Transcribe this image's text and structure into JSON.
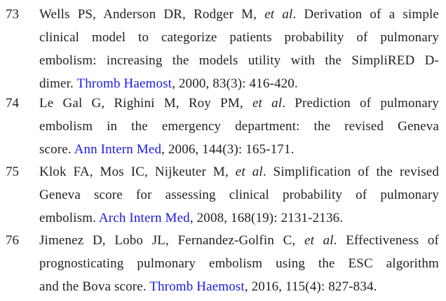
{
  "references": [
    {
      "number": "73",
      "authors": "Wells PS, Anderson DR, Rodger M,",
      "etal": "et al",
      "title_lines": [
        ". Derivation of a simple",
        "clinical model to categorize patients probability of pulmonary",
        "embolism: increasing the models utility with the SimpliRED D-",
        "dimer. "
      ],
      "journal": "Thromb Haemost",
      "citation": ", 2000, 83(3): 416-420."
    },
    {
      "number": "74",
      "authors": "Le Gal G, Righini M, Roy PM,",
      "etal": "et al",
      "title_lines": [
        ". Prediction of pulmonary",
        "embolism in the emergency department: the revised Geneva",
        "score. "
      ],
      "journal": "Ann Intern Med",
      "citation": ", 2006, 144(3): 165-171."
    },
    {
      "number": "75",
      "authors": "Klok FA, Mos IC, Nijkeuter M,",
      "etal": "et al",
      "title_lines": [
        ". Simplification of the revised",
        "Geneva score for assessing clinical probability of pulmonary",
        "embolism. "
      ],
      "journal": "Arch Intern Med",
      "citation": ", 2008, 168(19): 2131-2136."
    },
    {
      "number": "76",
      "authors": "Jimenez D, Lobo JL, Fernandez-Golfin C,",
      "etal": "et al",
      "title_lines": [
        ". Effectiveness of",
        "prognosticating pulmonary embolism using the ESC algorithm",
        "and the Bova score. "
      ],
      "journal": "Thromb Haemost",
      "citation": ", 2016, 115(4): 827-834."
    }
  ]
}
